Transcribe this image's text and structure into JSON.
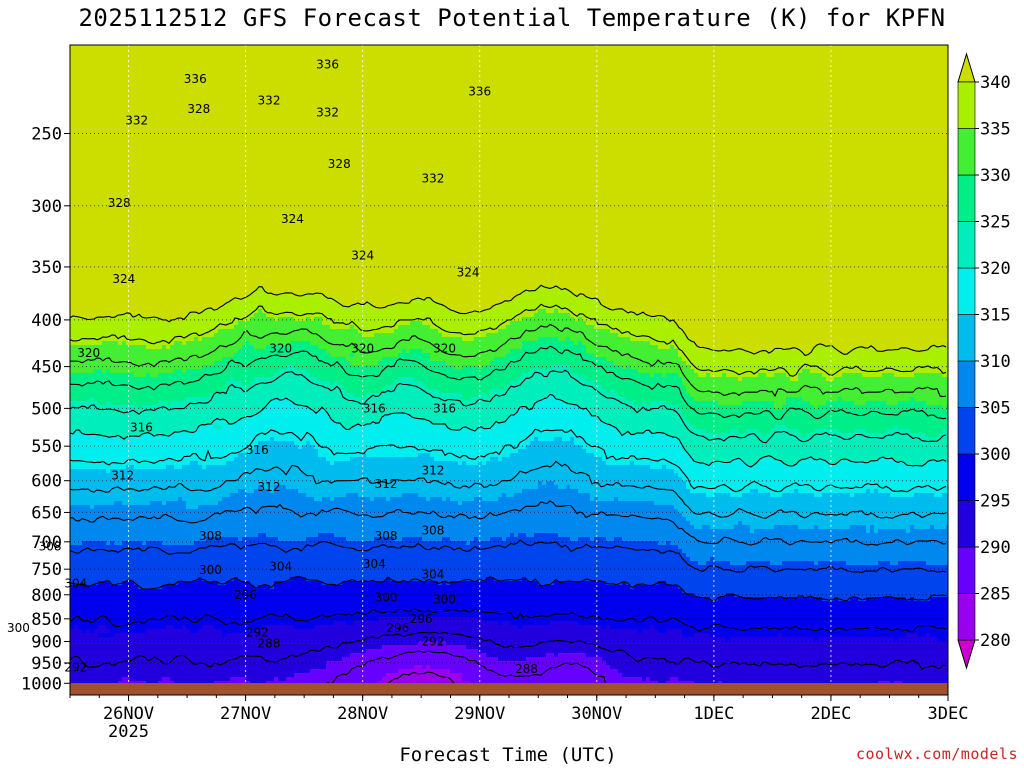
{
  "title": "2025112512 GFS Forecast Potential Temperature (K) for KPFN",
  "credit": "coolwx.com/models",
  "colors": {
    "ground": "#a0522d",
    "levels": [
      "#cc00cc",
      "#9900ee",
      "#6600ff",
      "#2200dd",
      "#0000ee",
      "#0044ee",
      "#0088ee",
      "#00bbee",
      "#00eeee",
      "#00eebb",
      "#00ee88",
      "#44ee33",
      "#aaee00",
      "#ccdd00"
    ]
  },
  "chart_data": {
    "type": "heatmap",
    "title": "2025112512 GFS Forecast Potential Temperature (K) for KPFN",
    "xlabel": "Forecast Time (UTC)",
    "ylabel": "",
    "x_ticks": [
      {
        "label": "26NOV",
        "sub": "2025"
      },
      {
        "label": "27NOV",
        "sub": ""
      },
      {
        "label": "28NOV",
        "sub": ""
      },
      {
        "label": "29NOV",
        "sub": ""
      },
      {
        "label": "30NOV",
        "sub": ""
      },
      {
        "label": "1DEC",
        "sub": ""
      },
      {
        "label": "2DEC",
        "sub": ""
      },
      {
        "label": "3DEC",
        "sub": ""
      }
    ],
    "y_ticks": [
      250,
      300,
      350,
      400,
      450,
      500,
      550,
      600,
      650,
      700,
      750,
      800,
      850,
      900,
      950,
      1000
    ],
    "y_axis": "pressure (hPa), log scale, inverted",
    "grid": true,
    "colorbar": {
      "unit": "K",
      "bounds": [
        275,
        280,
        285,
        290,
        295,
        300,
        305,
        310,
        315,
        320,
        325,
        330,
        335,
        340,
        345
      ],
      "tick_labels": [
        "280",
        "285",
        "290",
        "295",
        "300",
        "305",
        "310",
        "315",
        "320",
        "325",
        "330",
        "335",
        "340"
      ],
      "extend": "both"
    },
    "contour_labels": [
      {
        "text": "336",
        "day": 26.57,
        "p": 218
      },
      {
        "text": "332",
        "day": 26.07,
        "p": 242
      },
      {
        "text": "328",
        "day": 25.92,
        "p": 298
      },
      {
        "text": "324",
        "day": 25.96,
        "p": 361
      },
      {
        "text": "320",
        "day": 25.66,
        "p": 435
      },
      {
        "text": "316",
        "day": 26.11,
        "p": 525
      },
      {
        "text": "312",
        "day": 25.95,
        "p": 592
      },
      {
        "text": "308",
        "day": 25.33,
        "p": 708
      },
      {
        "text": "304",
        "day": 25.55,
        "p": 778
      },
      {
        "text": "300",
        "day": 25.06,
        "p": 870
      },
      {
        "text": "292",
        "day": 25.55,
        "p": 961
      },
      {
        "text": "328",
        "day": 26.6,
        "p": 235
      },
      {
        "text": "332",
        "day": 27.2,
        "p": 230
      },
      {
        "text": "324",
        "day": 27.4,
        "p": 310
      },
      {
        "text": "320",
        "day": 27.3,
        "p": 430
      },
      {
        "text": "316",
        "day": 27.1,
        "p": 555
      },
      {
        "text": "312",
        "day": 27.2,
        "p": 610
      },
      {
        "text": "308",
        "day": 26.7,
        "p": 690
      },
      {
        "text": "300",
        "day": 26.7,
        "p": 752
      },
      {
        "text": "296",
        "day": 27.0,
        "p": 800
      },
      {
        "text": "304",
        "day": 27.3,
        "p": 745
      },
      {
        "text": "292",
        "day": 27.1,
        "p": 880
      },
      {
        "text": "288",
        "day": 27.2,
        "p": 905
      },
      {
        "text": "336",
        "day": 27.7,
        "p": 210
      },
      {
        "text": "332",
        "day": 27.7,
        "p": 237
      },
      {
        "text": "328",
        "day": 27.8,
        "p": 270
      },
      {
        "text": "324",
        "day": 28.0,
        "p": 340
      },
      {
        "text": "320",
        "day": 28.0,
        "p": 430
      },
      {
        "text": "316",
        "day": 28.1,
        "p": 500
      },
      {
        "text": "312",
        "day": 28.2,
        "p": 605
      },
      {
        "text": "308",
        "day": 28.2,
        "p": 690
      },
      {
        "text": "304",
        "day": 28.1,
        "p": 740
      },
      {
        "text": "296",
        "day": 28.3,
        "p": 870
      },
      {
        "text": "300",
        "day": 28.2,
        "p": 805
      },
      {
        "text": "332",
        "day": 28.6,
        "p": 280
      },
      {
        "text": "336",
        "day": 29.0,
        "p": 225
      },
      {
        "text": "324",
        "day": 28.9,
        "p": 355
      },
      {
        "text": "320",
        "day": 28.7,
        "p": 430
      },
      {
        "text": "316",
        "day": 28.7,
        "p": 500
      },
      {
        "text": "312",
        "day": 28.6,
        "p": 585
      },
      {
        "text": "308",
        "day": 28.6,
        "p": 680
      },
      {
        "text": "304",
        "day": 28.6,
        "p": 760
      },
      {
        "text": "300",
        "day": 28.7,
        "p": 810
      },
      {
        "text": "296",
        "day": 28.5,
        "p": 850
      },
      {
        "text": "292",
        "day": 28.6,
        "p": 900
      },
      {
        "text": "288",
        "day": 29.4,
        "p": 965
      }
    ]
  }
}
